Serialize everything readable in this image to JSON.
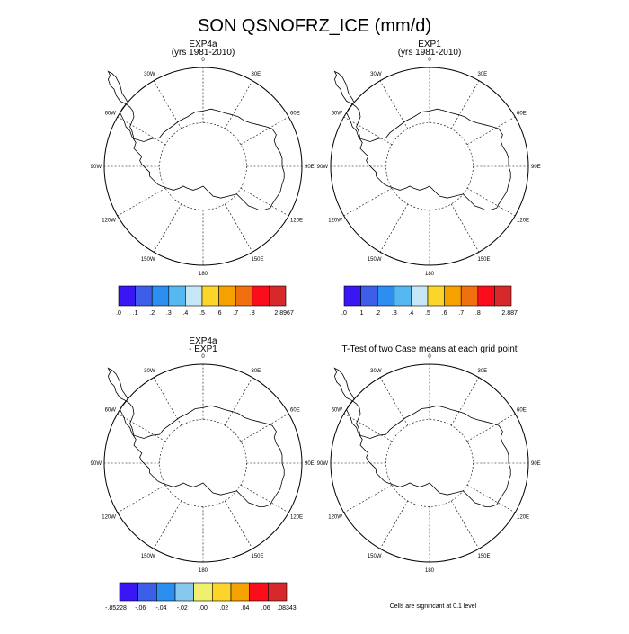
{
  "title": "SON QSNOFRZ_ICE (mm/d)",
  "lon_labels": {
    "lon_0": "0",
    "lon_30e": "30E",
    "lon_60e": "60E",
    "lon_90e": "90E",
    "lon_120e": "120E",
    "lon_150e": "150E",
    "lon_180": "180",
    "lon_150w": "150W",
    "lon_120w": "120W",
    "lon_90w": "90W",
    "lon_60w": "60W",
    "lon_30w": "30W"
  },
  "panels": [
    {
      "title_line1": "EXP4a",
      "title_line2": "(yrs 1981-2010)"
    },
    {
      "title_line1": "EXP1",
      "title_line2": "(yrs 1981-2010)"
    },
    {
      "title_line1": "EXP4a",
      "title_line2": "- EXP1"
    },
    {
      "title_line1": "T-Test of two Case means at each grid point",
      "title_line2": ""
    }
  ],
  "colorbars": [
    {
      "colors": [
        "#3a16f5",
        "#3d5ee8",
        "#2c8ef0",
        "#55b8f0",
        "#c6e6f5",
        "#fcd52b",
        "#f5a100",
        "#f07010",
        "#fc0d1b",
        "#d7282c"
      ],
      "labels": [
        ".0",
        ".1",
        ".2",
        ".3",
        ".4",
        ".5",
        ".6",
        ".7",
        ".8",
        "2.8967"
      ]
    },
    {
      "colors": [
        "#3a16f5",
        "#3d5ee8",
        "#2c8ef0",
        "#55b8f0",
        "#c6e6f5",
        "#fcd52b",
        "#f5a100",
        "#f07010",
        "#fc0d1b",
        "#d7282c"
      ],
      "labels": [
        ".0",
        ".1",
        ".2",
        ".3",
        ".4",
        ".5",
        ".6",
        ".7",
        ".8",
        "2.887"
      ]
    },
    {
      "colors": [
        "#3a16f5",
        "#3d5ee8",
        "#2c8ef0",
        "#86c8ee",
        "#f0f06e",
        "#fcd52b",
        "#f5a100",
        "#fc0d1b",
        "#d7282c"
      ],
      "labels": [
        "-.85228",
        "-.06",
        "-.04",
        "-.02",
        ".00",
        ".02",
        ".04",
        ".06",
        ".08343"
      ]
    }
  ],
  "note": "Cells are significant at 0.1 level"
}
